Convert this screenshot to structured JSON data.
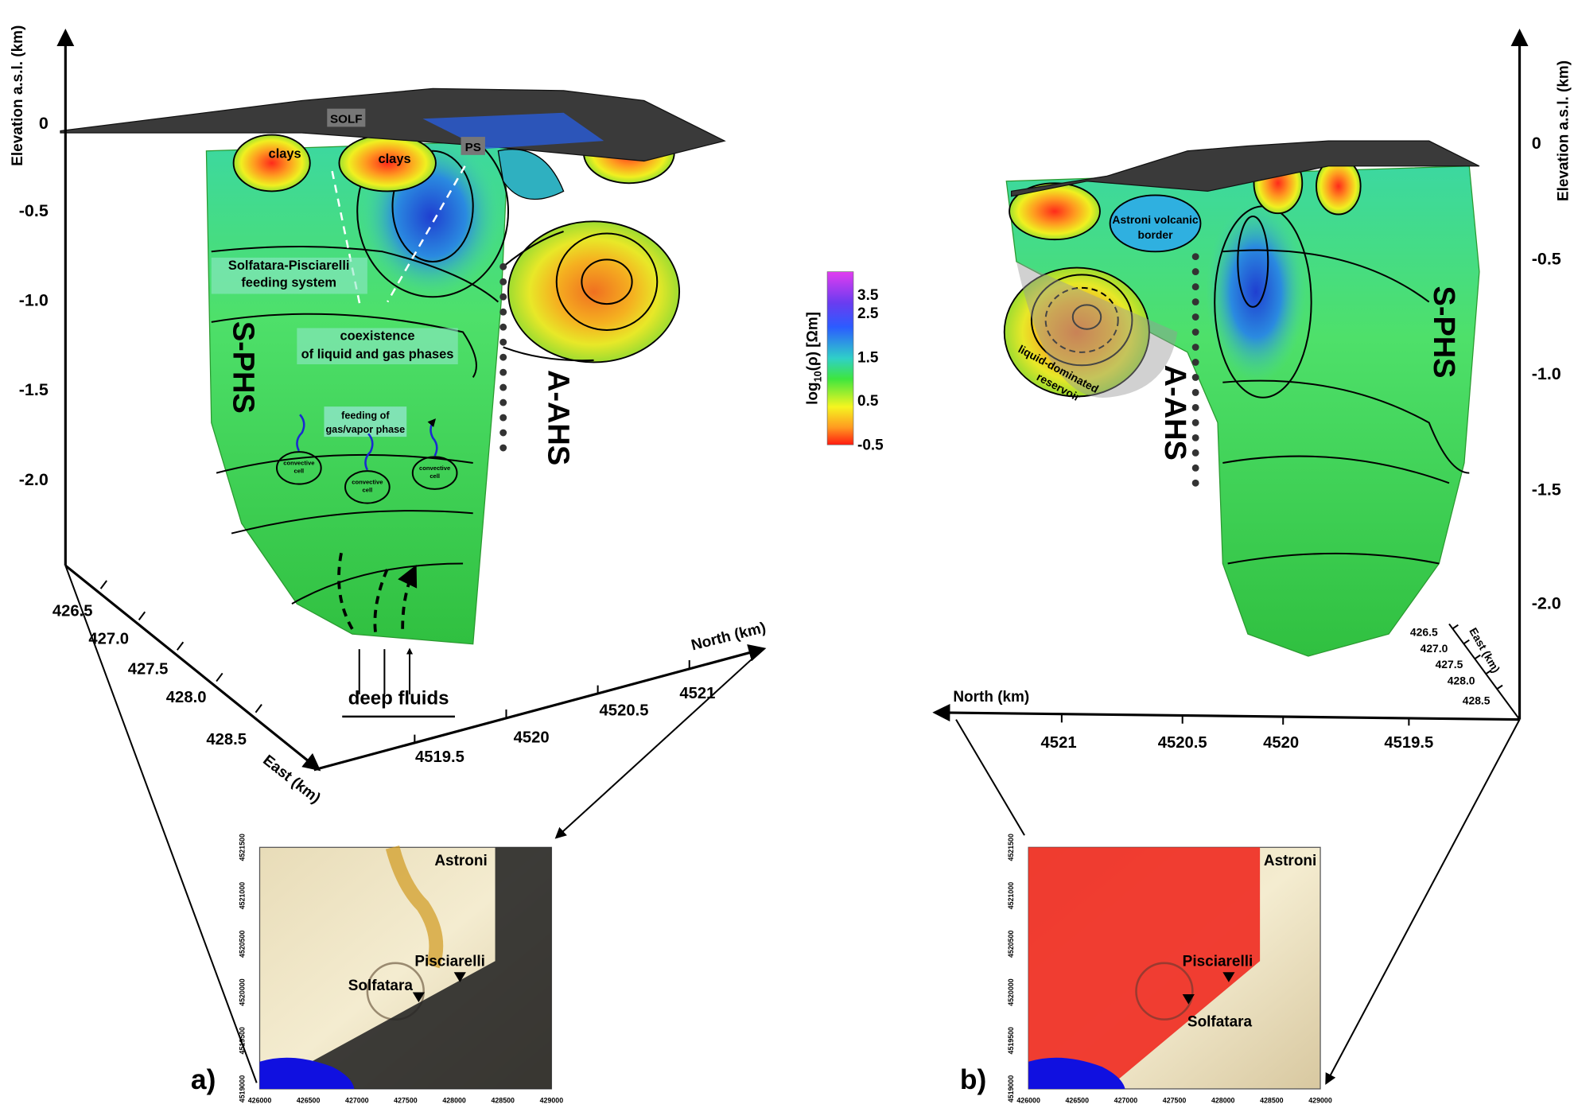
{
  "panel_a": {
    "label": "a)",
    "y_axis": {
      "title": "Elevation a.s.l. (km)",
      "ticks": [
        "0",
        "-0.5",
        "-1.0",
        "-1.5",
        "-2.0"
      ]
    },
    "east_axis": {
      "title": "East (km)",
      "ticks": [
        "426.5",
        "427.0",
        "427.5",
        "428.0",
        "428.5"
      ]
    },
    "north_axis": {
      "title": "North (km)",
      "ticks": [
        "4519.5",
        "4520",
        "4520.5",
        "4521"
      ]
    },
    "annotations": {
      "solf": "SOLF",
      "ps": "PS",
      "clays": [
        "clays",
        "clays"
      ],
      "feeding_system": [
        "Solfatara-Pisciarelli",
        "feeding system"
      ],
      "coexistence": [
        "coexistence",
        "of liquid and gas phases"
      ],
      "s_phs": "S-PHS",
      "a_ahs": "A-AHS",
      "feeding_gas": [
        "feeding of",
        "gas/vapor phase"
      ],
      "convective_cells": [
        [
          "convective",
          "cell"
        ],
        [
          "convective",
          "cell"
        ],
        [
          "convective",
          "cell"
        ]
      ],
      "deep_fluids": "deep fluids"
    },
    "map": {
      "labels": {
        "astroni": "Astroni",
        "pisciarelli": "Pisciarelli",
        "solfatara": "Solfatara"
      },
      "x_ticks": [
        "426000",
        "426500",
        "427000",
        "427500",
        "428000",
        "428500",
        "429000"
      ],
      "y_ticks": [
        "4519000",
        "4519500",
        "4520000",
        "4520500",
        "4521000",
        "4521500"
      ]
    }
  },
  "colorbar": {
    "title_parts": [
      "log",
      "10",
      "(ρ) [Ωm]"
    ],
    "ticks": [
      "3.5",
      "2.5",
      "1.5",
      "0.5",
      "-0.5"
    ]
  },
  "panel_b": {
    "label": "b)",
    "y_axis": {
      "title": "Elevation a.s.l. (km)",
      "ticks": [
        "0",
        "-0.5",
        "-1.0",
        "-1.5",
        "-2.0"
      ]
    },
    "east_axis": {
      "title": "East (km)",
      "ticks": [
        "426.5",
        "427.0",
        "427.5",
        "428.0",
        "428.5"
      ]
    },
    "north_axis": {
      "title": "North (km)",
      "ticks": [
        "4521",
        "4520.5",
        "4520",
        "4519.5"
      ]
    },
    "annotations": {
      "astroni_border": [
        "Astroni volcanic",
        "border"
      ],
      "reservoir": [
        "liquid-dominated",
        "reservoir"
      ],
      "a_ahs": "A-AHS",
      "s_phs": "S-PHS"
    },
    "map": {
      "labels": {
        "astroni": "Astroni",
        "pisciarelli": "Pisciarelli",
        "solfatara": "Solfatara"
      },
      "x_ticks": [
        "426000",
        "426500",
        "427000",
        "427500",
        "428000",
        "428500",
        "429000"
      ],
      "y_ticks": [
        "4519000",
        "4519500",
        "4520000",
        "4520500",
        "4521000",
        "4521500"
      ]
    }
  }
}
